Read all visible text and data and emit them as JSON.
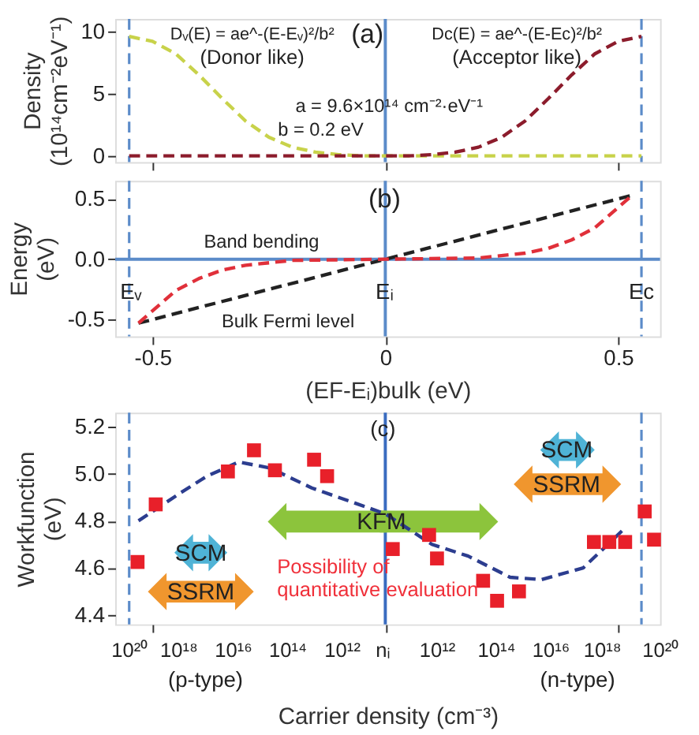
{
  "chart_data": [
    {
      "type": "line",
      "ylabel": "Density\n(10¹⁴cm⁻²eV⁻¹)",
      "xlim": [
        -0.58,
        0.59
      ],
      "xticks": [
        -0.5,
        0,
        0.5
      ],
      "ylim": [
        -0.5,
        11
      ],
      "yticks": [
        0,
        5,
        10
      ],
      "tick_labels": "y",
      "line_style": "dashed",
      "series": [
        {
          "color": "#c8d24a",
          "x": [
            -0.55,
            -0.5,
            -0.45,
            -0.4,
            -0.35,
            -0.3,
            -0.25,
            -0.2,
            -0.15,
            -0.1,
            -0.05,
            0,
            0.55
          ],
          "values": [
            9.6,
            9.2,
            8.2,
            6.5,
            4.6,
            2.8,
            1.5,
            0.7,
            0.3,
            0.1,
            0,
            0,
            0
          ]
        },
        {
          "color": "#8c1c2c",
          "x": [
            -0.55,
            0,
            0.05,
            0.1,
            0.15,
            0.2,
            0.25,
            0.3,
            0.35,
            0.4,
            0.45,
            0.5,
            0.55
          ],
          "values": [
            0,
            0,
            0,
            0.1,
            0.3,
            0.7,
            1.5,
            2.8,
            4.6,
            6.5,
            8.2,
            9.2,
            9.6
          ]
        }
      ],
      "ref_lines": [
        {
          "axis": "x",
          "value": -0.55,
          "color": "#5b8bc9",
          "line_style": "dashed"
        },
        {
          "axis": "x",
          "value": 0,
          "color": "#5b8bc9",
          "line_style": "solid"
        },
        {
          "axis": "x",
          "value": 0.55,
          "color": "#5b8bc9",
          "line_style": "dashed"
        }
      ],
      "annotations": [
        "(a)",
        "Dᵥ(E) = ae^-(E-Eᵥ)²/b²",
        "(Donor like)",
        "Dc(E) = ae^-(E-Ec)²/b²",
        "(Acceptor like)",
        "a = 9.6×10¹⁴ cm⁻²·eV⁻¹",
        "b = 0.2 eV"
      ]
    },
    {
      "type": "line",
      "xlabel": "(EF-Eᵢ)bulk (eV)",
      "ylabel": "Energy\n(eV)",
      "xlim": [
        -0.58,
        0.59
      ],
      "xticks": [
        -0.5,
        0,
        0.5
      ],
      "ylim": [
        -0.64,
        0.65
      ],
      "yticks": [
        -0.5,
        {
          "value": 0,
          "label": "0.0"
        },
        0.5
      ],
      "line_style": "dashed",
      "series": [
        {
          "color": "#222222",
          "x": [
            -0.53,
            0.53
          ],
          "values": [
            -0.53,
            0.53
          ]
        },
        {
          "color": "#e0303a",
          "x": [
            -0.53,
            -0.45,
            -0.4,
            -0.35,
            -0.3,
            -0.2,
            0,
            0.2,
            0.3,
            0.35,
            0.4,
            0.45,
            0.53
          ],
          "values": [
            -0.53,
            -0.26,
            -0.16,
            -0.09,
            -0.05,
            -0.01,
            0,
            0.01,
            0.05,
            0.09,
            0.16,
            0.26,
            0.53
          ]
        }
      ],
      "ref_lines": [
        {
          "axis": "x",
          "value": -0.55,
          "color": "#5b8bc9",
          "line_style": "dashed"
        },
        {
          "axis": "x",
          "value": 0,
          "color": "#5b8bc9",
          "line_style": "solid"
        },
        {
          "axis": "x",
          "value": 0.55,
          "color": "#5b8bc9",
          "line_style": "dashed"
        },
        {
          "axis": "y",
          "value": 0,
          "color": "#5b8bc9",
          "line_style": "solid"
        }
      ],
      "annotations": [
        "(b)",
        "Band bending",
        "Bulk Fermi level",
        "Eᵥ",
        "Eᵢ",
        "Ec"
      ]
    },
    {
      "type": "scatter",
      "xlabel": "Carrier density (cm⁻³)",
      "ylabel": "Workfunction\n(eV)",
      "xlim": [
        -0.58,
        0.59
      ],
      "xticks": [
        -0.5,
        0,
        0.5
      ],
      "tick_labels": "y",
      "ylim": [
        4.36,
        5.26
      ],
      "yticks": [
        4.4,
        4.6,
        4.8,
        {
          "value": 5,
          "label": "5.0"
        },
        5.2
      ],
      "series": [
        {
          "type": "line",
          "line_style": "dashed",
          "color": "#2c3d8f",
          "x": [
            -0.53,
            -0.439,
            -0.383,
            -0.315,
            -0.248,
            -0.158,
            0,
            0.1,
            0.178,
            0.268,
            0.335,
            0.425,
            0.515
          ],
          "values": [
            4.8,
            4.92,
            4.99,
            5.05,
            5.025,
            4.94,
            4.83,
            4.7,
            4.65,
            4.56,
            4.55,
            4.6,
            4.77
          ]
        },
        {
          "type": "scatter",
          "marker": "square",
          "color": "#e8202a",
          "x": [
            -0.532,
            -0.493,
            -0.338,
            -0.282,
            -0.237,
            -0.153,
            -0.125,
            0.016,
            0.094,
            0.111,
            0.21,
            0.24,
            0.287,
            0.448,
            0.481,
            0.515,
            0.557,
            0.577
          ],
          "values": [
            4.625,
            4.87,
            5.01,
            5.1,
            5.015,
            5.06,
            4.99,
            4.68,
            4.74,
            4.64,
            4.545,
            4.46,
            4.5,
            4.71,
            4.71,
            4.71,
            4.84,
            4.72
          ]
        }
      ],
      "ref_lines": [
        {
          "axis": "x",
          "value": -0.55,
          "color": "#5b8bc9",
          "line_style": "dashed"
        },
        {
          "axis": "x",
          "value": 0,
          "color": "#3a6cc0",
          "line_style": "solid"
        },
        {
          "axis": "x",
          "value": 0.55,
          "color": "#5b8bc9",
          "line_style": "dashed"
        }
      ],
      "annotations": [
        "(c)",
        "Possibility of\nquantitative evaluation",
        "(p-type)",
        "(n-type)",
        "KFM",
        "SCM",
        "SSRM",
        "SCM",
        "SSRM",
        "10²⁰",
        "10¹⁸",
        "10¹⁶",
        "10¹⁴",
        "10¹²",
        "nᵢ",
        "10¹²",
        "10¹⁴",
        "10¹⁶",
        "10¹⁸",
        "10²⁰"
      ]
    }
  ]
}
